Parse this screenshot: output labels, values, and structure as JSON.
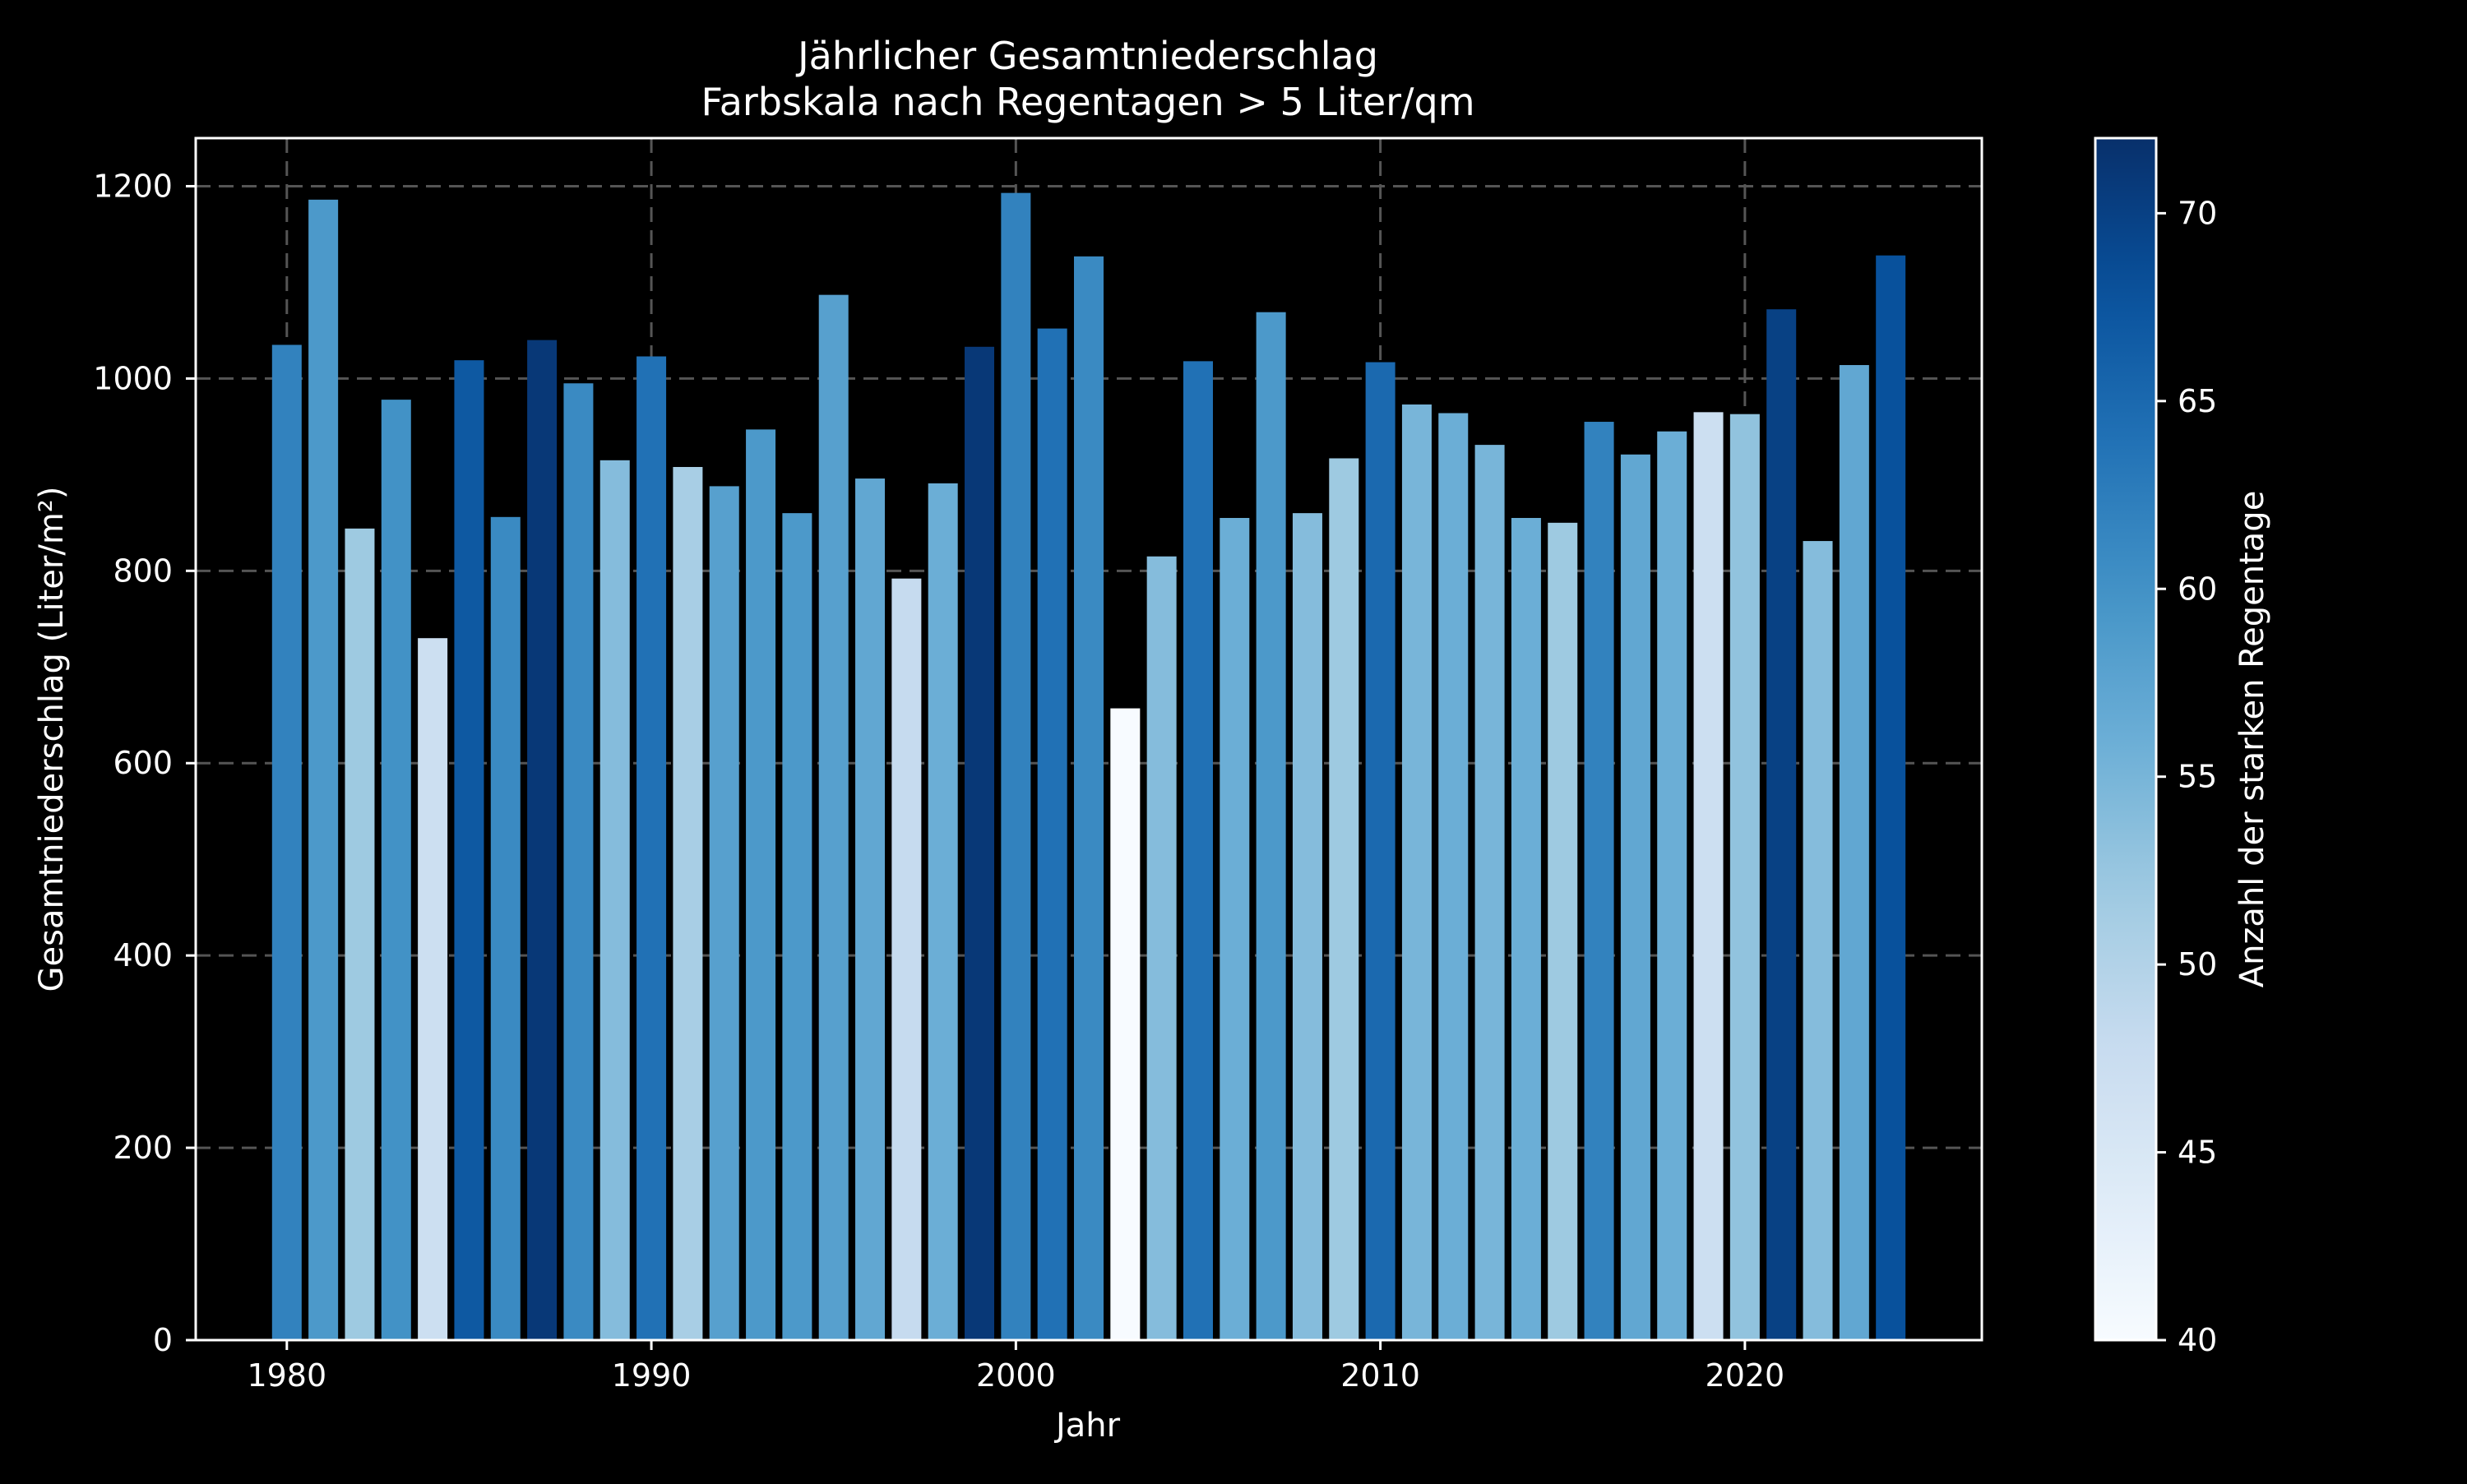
{
  "chart_data": {
    "type": "bar",
    "title": "Jährlicher Gesamtniederschlag",
    "subtitle": "Farbskala nach Regentagen > 5 Liter/qm",
    "xlabel": "Jahr",
    "ylabel": "Gesamtniederschlag (Liter/m²)",
    "xlim": [
      1977.5,
      2026.5
    ],
    "ylim": [
      0,
      1250
    ],
    "x_ticks": [
      1980,
      1990,
      2000,
      2010,
      2020
    ],
    "y_ticks": [
      0,
      200,
      400,
      600,
      800,
      1000,
      1200
    ],
    "grid": true,
    "colormap": "Blues",
    "colorbar": {
      "label": "Anzahl der starken Regentage",
      "min": 40,
      "max": 72,
      "ticks": [
        40,
        45,
        50,
        55,
        60,
        65,
        70
      ],
      "stops": [
        "#f7fbff",
        "#deebf7",
        "#c6dbef",
        "#9ecae1",
        "#6baed6",
        "#4292c6",
        "#2171b5",
        "#08519c",
        "#08306b"
      ]
    },
    "x": [
      1980,
      1981,
      1982,
      1983,
      1984,
      1985,
      1986,
      1987,
      1988,
      1989,
      1990,
      1991,
      1992,
      1993,
      1994,
      1995,
      1996,
      1997,
      1998,
      1999,
      2000,
      2001,
      2002,
      2003,
      2004,
      2005,
      2006,
      2007,
      2008,
      2009,
      2010,
      2011,
      2012,
      2013,
      2014,
      2015,
      2016,
      2017,
      2018,
      2019,
      2020,
      2021,
      2022,
      2023,
      2024
    ],
    "values": [
      1035,
      1186,
      844,
      978,
      730,
      1019,
      856,
      1040,
      995,
      915,
      1023,
      908,
      888,
      947,
      860,
      1087,
      896,
      792,
      891,
      1033,
      1193,
      1052,
      1127,
      657,
      815,
      1018,
      855,
      1069,
      860,
      917,
      1017,
      973,
      964,
      931,
      855,
      850,
      955,
      921,
      945,
      965,
      963,
      1072,
      831,
      1014,
      1128
    ],
    "color_values": [
      62,
      59,
      52,
      60,
      47,
      67,
      61,
      71,
      61,
      54,
      64,
      51,
      58,
      59,
      59,
      58,
      57,
      48,
      56,
      71,
      62,
      64,
      61,
      40,
      54,
      64,
      56,
      59,
      54,
      52,
      65,
      55,
      56,
      55,
      56,
      52,
      62,
      57,
      56,
      47,
      53,
      70,
      54,
      57,
      68
    ]
  }
}
